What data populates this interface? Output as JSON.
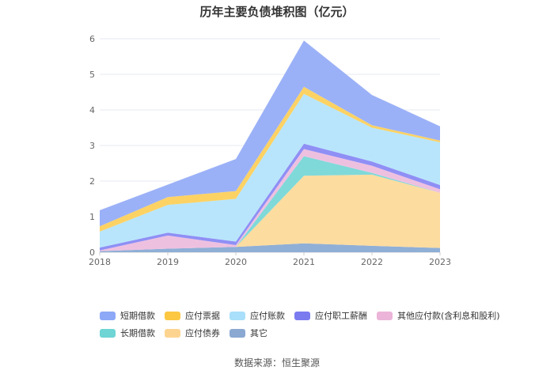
{
  "title": "历年主要负债堆积图（亿元）",
  "source": "数据来源：恒生聚源",
  "chart_data": {
    "type": "area",
    "stacked": true,
    "x": [
      "2018",
      "2019",
      "2020",
      "2021",
      "2022",
      "2023"
    ],
    "ylim": [
      0,
      6
    ],
    "yticks": [
      "0",
      "1",
      "2",
      "3",
      "4",
      "5",
      "6"
    ],
    "grid": true,
    "legend_position": "bottom",
    "series": [
      {
        "name": "其它",
        "color": "#8fafd6",
        "values": [
          0.03,
          0.1,
          0.15,
          0.25,
          0.18,
          0.12
        ]
      },
      {
        "name": "应付债券",
        "color": "#fddca0",
        "values": [
          0.0,
          0.0,
          0.0,
          1.9,
          2.0,
          1.55
        ]
      },
      {
        "name": "长期借款",
        "color": "#7fd9d9",
        "values": [
          0.0,
          0.0,
          0.0,
          0.55,
          0.05,
          0.0
        ]
      },
      {
        "name": "其他应付款(含利息和股利)",
        "color": "#eec0e0",
        "values": [
          0.02,
          0.37,
          0.05,
          0.2,
          0.2,
          0.1
        ]
      },
      {
        "name": "应付职工薪酬",
        "color": "#8f8ff5",
        "values": [
          0.08,
          0.08,
          0.1,
          0.15,
          0.12,
          0.12
        ]
      },
      {
        "name": "应付账款",
        "color": "#b8e5fb",
        "values": [
          0.45,
          0.78,
          1.2,
          1.4,
          0.95,
          1.2
        ]
      },
      {
        "name": "应付票据",
        "color": "#fcd264",
        "values": [
          0.15,
          0.22,
          0.22,
          0.2,
          0.07,
          0.05
        ]
      },
      {
        "name": "短期借款",
        "color": "#9bb1f7",
        "values": [
          0.45,
          0.35,
          0.9,
          1.3,
          0.85,
          0.4
        ]
      }
    ]
  },
  "legend": {
    "row1": [
      {
        "label": "短期借款",
        "color": "#8ca8f6"
      },
      {
        "label": "应付票据",
        "color": "#fcc842"
      },
      {
        "label": "应付账款",
        "color": "#a9dffa"
      },
      {
        "label": "应付职工薪酬",
        "color": "#7b7bf0"
      },
      {
        "label": "其他应付款(含利息和股利)",
        "color": "#ebb4d8"
      }
    ],
    "row2": [
      {
        "label": "长期借款",
        "color": "#6fd4d4"
      },
      {
        "label": "应付债券",
        "color": "#fdd48f"
      },
      {
        "label": "其它",
        "color": "#8aa8d2"
      }
    ]
  }
}
